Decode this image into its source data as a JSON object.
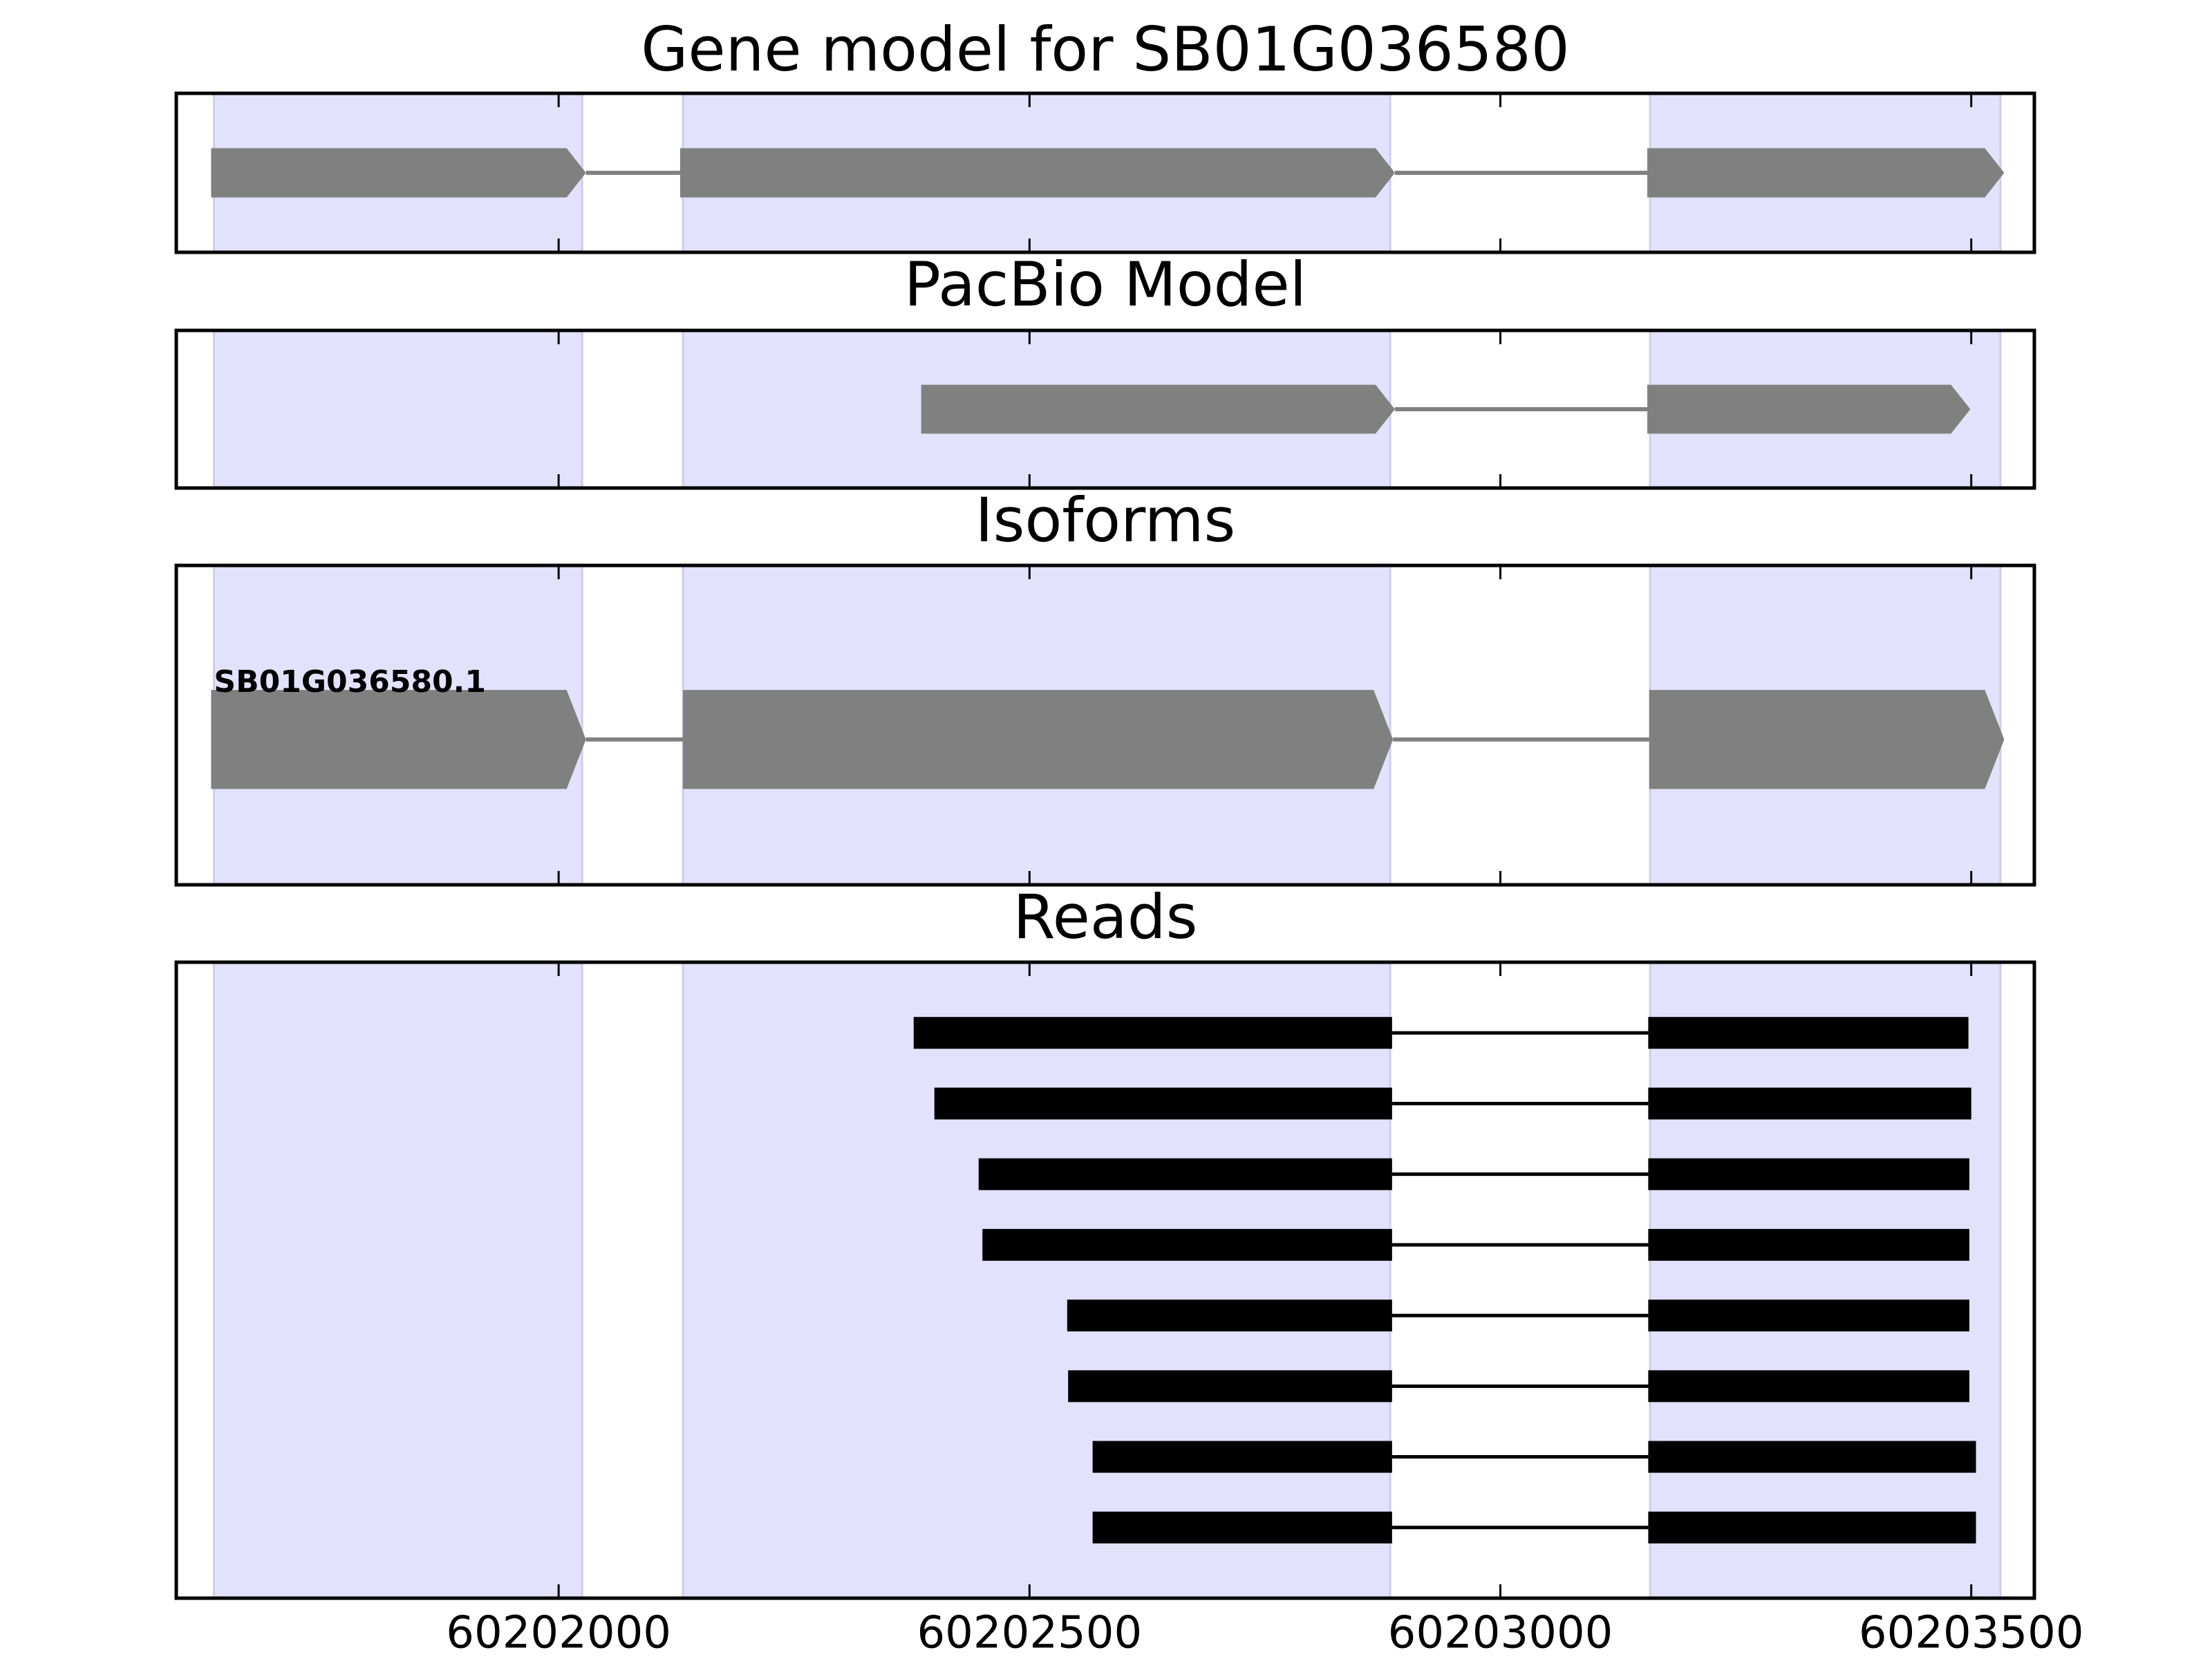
{
  "chart_data": [
    {
      "type": "gene",
      "title": "Gene model for SB01G036580",
      "color": "#808080",
      "exons": [
        [
          60201631,
          60202029
        ],
        [
          60202129,
          60202888
        ],
        [
          60203156,
          60203535
        ]
      ],
      "highlights": [
        [
          60201634,
          60202025
        ],
        [
          60202132,
          60202883
        ],
        [
          60203159,
          60203531
        ]
      ],
      "xlim": [
        60201594,
        60203567
      ],
      "xticks": [
        60202000,
        60202500,
        60203000,
        60203500
      ]
    },
    {
      "type": "gene",
      "title": "PacBio Model",
      "color": "#808080",
      "exons": [
        [
          60202385,
          60202888
        ],
        [
          60203156,
          60203499
        ]
      ],
      "highlights": [
        [
          60201634,
          60202025
        ],
        [
          60202132,
          60202883
        ],
        [
          60203159,
          60203531
        ]
      ],
      "xlim": [
        60201594,
        60203567
      ],
      "xticks": [
        60202000,
        60202500,
        60203000,
        60203500
      ]
    },
    {
      "type": "gene",
      "title": "Isoforms",
      "color": "#808080",
      "label": "SB01G036580.1",
      "exons": [
        [
          60201631,
          60202029
        ],
        [
          60202132,
          60202886
        ],
        [
          60203158,
          60203535
        ]
      ],
      "highlights": [
        [
          60201634,
          60202025
        ],
        [
          60202132,
          60202883
        ],
        [
          60203159,
          60203531
        ]
      ],
      "xlim": [
        60201594,
        60203567
      ],
      "xticks": [
        60202000,
        60202500,
        60203000,
        60203500
      ]
    },
    {
      "type": "reads",
      "title": "Reads",
      "color": "#000000",
      "reads": [
        [
          [
            60202377,
            60202885
          ],
          [
            60203157,
            60203497
          ]
        ],
        [
          [
            60202399,
            60202885
          ],
          [
            60203157,
            60203500
          ]
        ],
        [
          [
            60202446,
            60202885
          ],
          [
            60203157,
            60203498
          ]
        ],
        [
          [
            60202450,
            60202885
          ],
          [
            60203157,
            60203498
          ]
        ],
        [
          [
            60202540,
            60202885
          ],
          [
            60203157,
            60203498
          ]
        ],
        [
          [
            60202541,
            60202885
          ],
          [
            60203157,
            60203498
          ]
        ],
        [
          [
            60202567,
            60202885
          ],
          [
            60203157,
            60203505
          ]
        ],
        [
          [
            60202567,
            60202885
          ],
          [
            60203157,
            60203505
          ]
        ]
      ],
      "highlights": [
        [
          60201634,
          60202025
        ],
        [
          60202132,
          60202883
        ],
        [
          60203159,
          60203531
        ]
      ],
      "xlim": [
        60201594,
        60203567
      ],
      "xticks": [
        60202000,
        60202500,
        60203000,
        60203500
      ]
    }
  ]
}
